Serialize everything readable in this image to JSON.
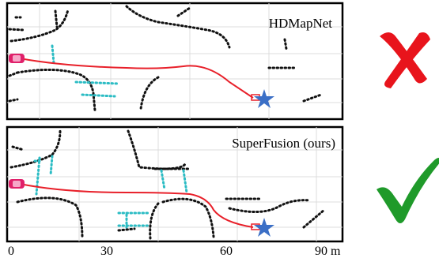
{
  "panels": [
    {
      "title": "HDMapNet",
      "verdict": "cross-icon",
      "verdict_color": "#e8141c"
    },
    {
      "title": "SuperFusion (ours)",
      "verdict": "check-icon",
      "verdict_color": "#1f9a2a"
    }
  ],
  "axis": {
    "ticks": [
      "0",
      "30",
      "60",
      "90 m"
    ]
  },
  "colors": {
    "boundary": "#111111",
    "divider": "#2bbcc4",
    "trajectory": "#e8202a",
    "goal": "#3b6fc6",
    "vehicle": "#e0206a",
    "grid": "#d9d9d9"
  }
}
